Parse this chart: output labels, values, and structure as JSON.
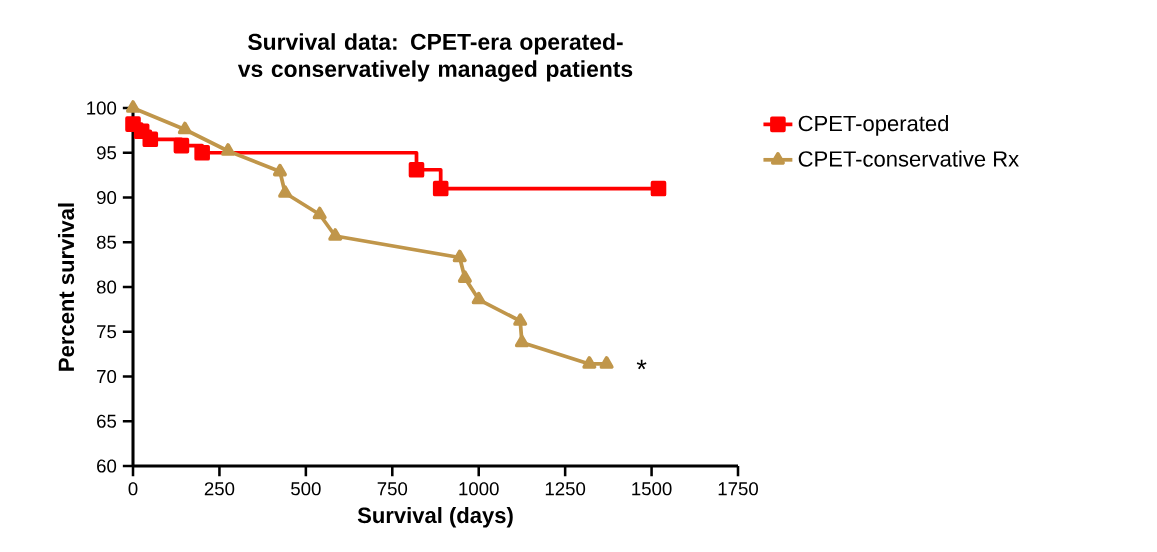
{
  "chart_data": {
    "type": "line",
    "title": "Survival data: CPET-era operated- vs conservatively managed patients",
    "xlabel": "Survival (days)",
    "ylabel": "Percent survival",
    "xlim": [
      0,
      1750
    ],
    "xticks": [
      0,
      250,
      500,
      750,
      1000,
      1250,
      1500,
      1750
    ],
    "ylim": [
      60,
      100
    ],
    "yticks": [
      60,
      65,
      70,
      75,
      80,
      85,
      90,
      95,
      100
    ],
    "legend": "right",
    "grid": false,
    "series": [
      {
        "name": "CPET-operated",
        "type": "step",
        "color": "#ff0000",
        "marker": "square",
        "x": [
          0,
          25,
          50,
          140,
          200,
          820,
          890,
          1520
        ],
        "values": [
          98.2,
          97.4,
          96.5,
          95.8,
          95,
          93.1,
          91,
          91
        ]
      },
      {
        "name": "CPET-conservative Rx",
        "color": "#c0964a",
        "marker": "triangle",
        "x": [
          0,
          150,
          275,
          425,
          440,
          540,
          585,
          945,
          960,
          1000,
          1120,
          1125,
          1320,
          1370
        ],
        "values": [
          100,
          97.6,
          95.2,
          92.9,
          90.5,
          88.1,
          85.7,
          83.3,
          81,
          78.6,
          76.2,
          73.8,
          71.4,
          71.4
        ]
      }
    ],
    "annotations": [
      {
        "text": "*",
        "x": 1370,
        "y": 71.4
      }
    ]
  }
}
